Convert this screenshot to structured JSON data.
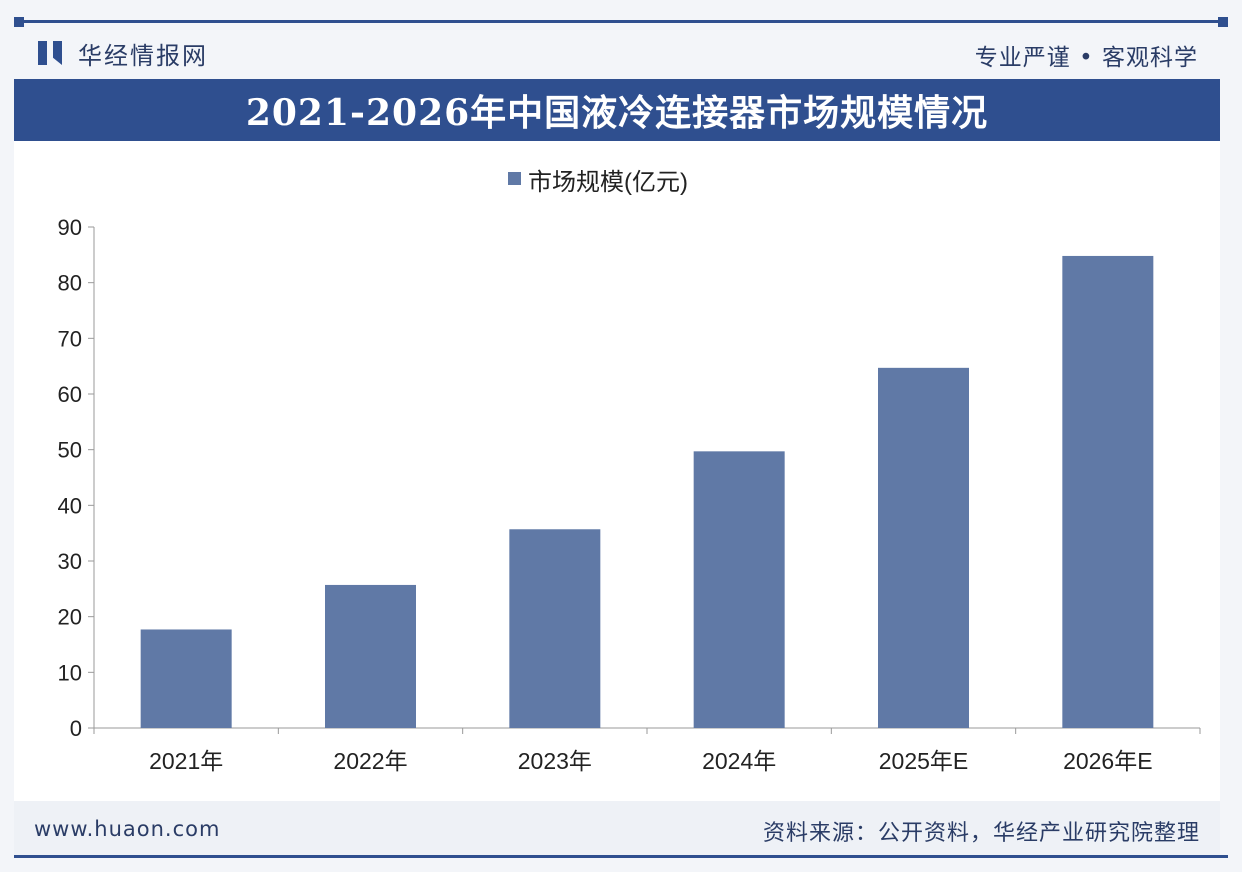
{
  "header": {
    "brand": "华经情报网",
    "slogan": "专业严谨 • 客观科学"
  },
  "chart_data": {
    "type": "bar",
    "title": "2021-2026年中国液冷连接器市场规模情况",
    "legend": "市场规模(亿元)",
    "categories": [
      "2021年",
      "2022年",
      "2023年",
      "2024年",
      "2025年E",
      "2026年E"
    ],
    "values": [
      17.7,
      25.7,
      35.7,
      49.7,
      64.7,
      84.8
    ],
    "yticks": [
      0,
      10,
      20,
      30,
      40,
      50,
      60,
      70,
      80,
      90
    ],
    "ylim": [
      0,
      90
    ],
    "xlabel": "",
    "ylabel": "",
    "legend_position": "top-center",
    "bar_color": "#6079a6"
  },
  "footer": {
    "url": "www.huaon.com",
    "source": "资料来源：公开资料，华经产业研究院整理"
  },
  "colors": {
    "primary": "#2f4f8f",
    "bar": "#6079a6",
    "text": "#2a3c66"
  }
}
